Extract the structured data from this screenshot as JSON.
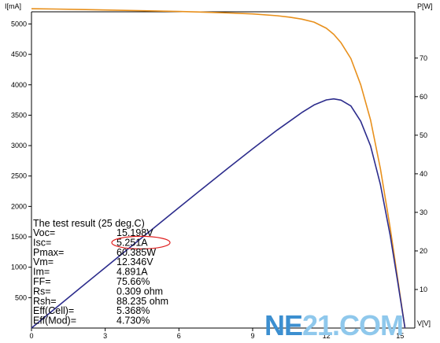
{
  "chart_data": {
    "type": "line",
    "xlabel": "V[V]",
    "ylabel_left": "I[mA]",
    "ylabel_right": "P[W]",
    "xlim": [
      0,
      15.6
    ],
    "ylim_left": [
      0,
      5200
    ],
    "ylim_right": [
      0,
      82
    ],
    "x_ticks": [
      "0",
      "3",
      "6",
      "9",
      "12",
      "15"
    ],
    "y_left_ticks": [
      "500",
      "1000",
      "1500",
      "2000",
      "2500",
      "3000",
      "3500",
      "4000",
      "4500",
      "5000"
    ],
    "y_right_ticks": [
      "10",
      "20",
      "30",
      "40",
      "50",
      "60",
      "70"
    ],
    "grid": false,
    "series": [
      {
        "name": "",
        "axis": "left",
        "color": "#e8901c",
        "x": [
          0,
          1,
          2,
          3,
          4,
          5,
          6,
          7,
          8,
          9,
          10,
          10.5,
          11,
          11.5,
          12,
          12.3,
          12.6,
          13,
          13.4,
          13.8,
          14.2,
          14.6,
          14.9,
          15.198
        ],
        "y": [
          5251,
          5245,
          5238,
          5230,
          5222,
          5214,
          5205,
          5195,
          5182,
          5165,
          5135,
          5112,
          5080,
          5030,
          4930,
          4830,
          4690,
          4430,
          4000,
          3420,
          2620,
          1640,
          820,
          0
        ]
      },
      {
        "name": "",
        "axis": "right",
        "color": "#2c2c8c",
        "x": [
          0,
          1,
          2,
          3,
          4,
          5,
          6,
          7,
          8,
          9,
          10,
          11,
          11.5,
          12,
          12.3,
          12.6,
          13,
          13.4,
          13.8,
          14.2,
          14.6,
          14.9,
          15.198
        ],
        "y": [
          0,
          5.25,
          10.48,
          15.69,
          20.89,
          26.07,
          31.23,
          36.37,
          41.46,
          46.49,
          51.35,
          55.88,
          57.85,
          59.16,
          59.41,
          59.09,
          57.59,
          53.6,
          47.2,
          37.2,
          23.94,
          12.22,
          0
        ]
      }
    ],
    "annotations": {
      "results_title": "The test result (25 deg.C)",
      "results": [
        {
          "label": "Voc=",
          "value": "15.198V"
        },
        {
          "label": "Isc=",
          "value": "5.251A",
          "circled": true
        },
        {
          "label": "Pmax=",
          "value": "60.385W"
        },
        {
          "label": "Vm=",
          "value": "12.346V"
        },
        {
          "label": "Im=",
          "value": "4.891A"
        },
        {
          "label": "FF=",
          "value": "75.66%"
        },
        {
          "label": "Rs=",
          "value": "0.309 ohm"
        },
        {
          "label": "Rsh=",
          "value": "88.235 ohm"
        },
        {
          "label": "Eff(Cell)=",
          "value": "5.368%"
        },
        {
          "label": "Eff(Mod)=",
          "value": "4.730%"
        }
      ],
      "highlight_color": "#e02020"
    },
    "watermark": {
      "text_a": "NE",
      "text_b": "21.COM",
      "color_a": "#3c8fd0",
      "color_b": "#8fc8ec"
    }
  }
}
